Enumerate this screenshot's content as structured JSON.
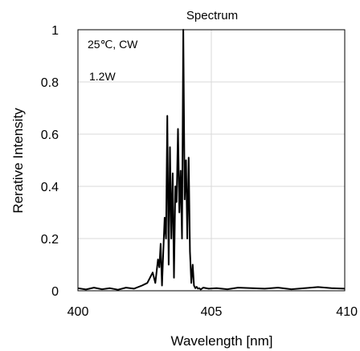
{
  "chart_data": {
    "type": "line",
    "title": "Spectrum",
    "xlabel": "Wavelength [nm]",
    "ylabel": "Rerative Intensity",
    "xlim": [
      400,
      410
    ],
    "ylim": [
      0,
      1
    ],
    "xticks": [
      400,
      405,
      410
    ],
    "yticks": [
      0,
      0.2,
      0.4,
      0.6,
      0.8,
      1
    ],
    "ytick_labels": [
      "0",
      "0.2",
      "0.4",
      "0.6",
      "0.8",
      "1"
    ],
    "grid": true,
    "annotations": [
      "25℃, CW",
      "1.2W"
    ],
    "series": [
      {
        "x": [
          400.0,
          400.3,
          400.6,
          400.9,
          401.2,
          401.5,
          401.8,
          402.1,
          402.4,
          402.6,
          402.8,
          402.9,
          403.0,
          403.05,
          403.1,
          403.15,
          403.2,
          403.25,
          403.3,
          403.35,
          403.4,
          403.45,
          403.5,
          403.55,
          403.6,
          403.65,
          403.7,
          403.75,
          403.8,
          403.85,
          403.9,
          403.95,
          404.0,
          404.05,
          404.1,
          404.15,
          404.2,
          404.25,
          404.3,
          404.35,
          404.4,
          404.45,
          404.5,
          404.55,
          404.6,
          404.7,
          404.9,
          405.2,
          405.6,
          406.0,
          406.5,
          407.0,
          407.5,
          408.0,
          408.5,
          409.0,
          409.5,
          410.0
        ],
        "y": [
          0.01,
          0.005,
          0.012,
          0.006,
          0.01,
          0.004,
          0.012,
          0.008,
          0.02,
          0.03,
          0.07,
          0.03,
          0.12,
          0.09,
          0.18,
          0.02,
          0.15,
          0.28,
          0.2,
          0.67,
          0.1,
          0.55,
          0.2,
          0.45,
          0.05,
          0.4,
          0.34,
          0.62,
          0.3,
          0.46,
          0.2,
          1.0,
          0.35,
          0.5,
          0.2,
          0.51,
          0.15,
          0.03,
          0.1,
          0.02,
          0.01,
          0.015,
          0.008,
          0.01,
          0.005,
          0.012,
          0.008,
          0.01,
          0.006,
          0.012,
          0.01,
          0.008,
          0.012,
          0.006,
          0.01,
          0.014,
          0.01,
          0.008
        ]
      }
    ]
  }
}
